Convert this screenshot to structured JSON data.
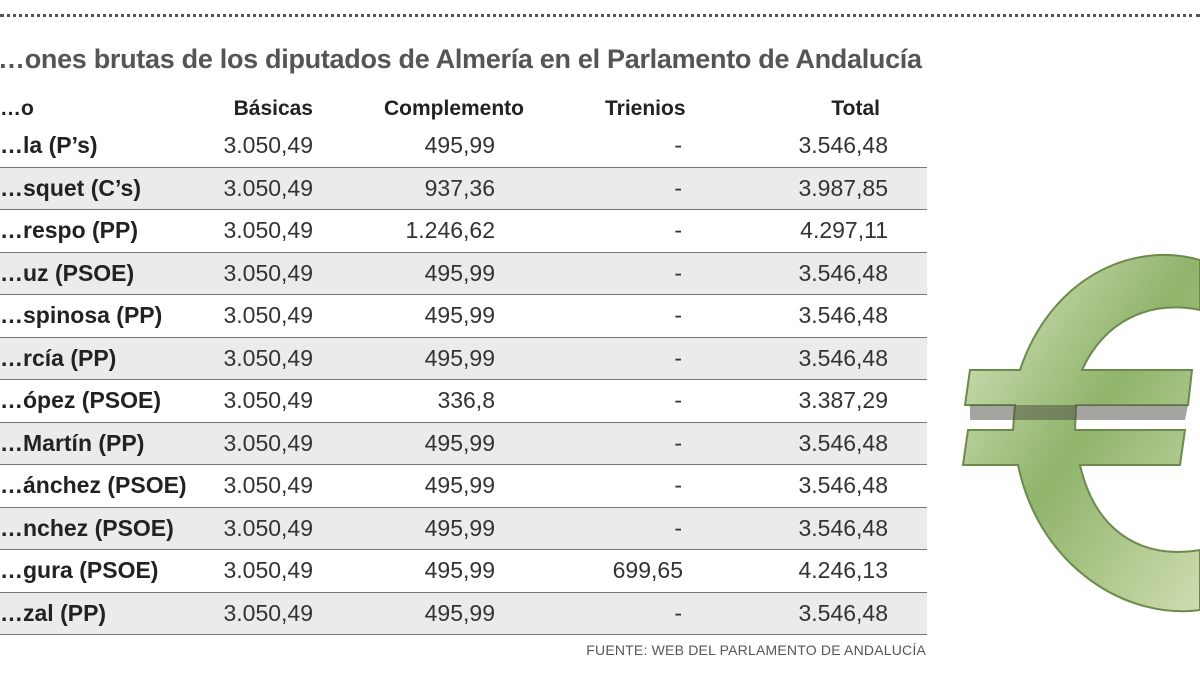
{
  "title": "…ones brutas de los diputados de Almería en el Parlamento de Andalucía",
  "columns": [
    "…o",
    "Básicas",
    "Complemento",
    "Trienios",
    "Total"
  ],
  "rows": [
    {
      "name": "…la (P’s)",
      "basicas": "3.050,49",
      "complemento": "495,99",
      "trienios": "-",
      "total": "3.546,48"
    },
    {
      "name": "…squet (C’s)",
      "basicas": "3.050,49",
      "complemento": "937,36",
      "trienios": "-",
      "total": "3.987,85"
    },
    {
      "name": "…respo (PP)",
      "basicas": "3.050,49",
      "complemento": "1.246,62",
      "trienios": "-",
      "total": "4.297,11"
    },
    {
      "name": "…uz (PSOE)",
      "basicas": "3.050,49",
      "complemento": "495,99",
      "trienios": "-",
      "total": "3.546,48"
    },
    {
      "name": "…spinosa (PP)",
      "basicas": "3.050,49",
      "complemento": "495,99",
      "trienios": "-",
      "total": "3.546,48"
    },
    {
      "name": "…rcía (PP)",
      "basicas": "3.050,49",
      "complemento": "495,99",
      "trienios": "-",
      "total": "3.546,48"
    },
    {
      "name": "…ópez (PSOE)",
      "basicas": "3.050,49",
      "complemento": "336,8",
      "trienios": "-",
      "total": "3.387,29"
    },
    {
      "name": "…Martín (PP)",
      "basicas": "3.050,49",
      "complemento": "495,99",
      "trienios": "-",
      "total": "3.546,48"
    },
    {
      "name": "…ánchez (PSOE)",
      "basicas": "3.050,49",
      "complemento": "495,99",
      "trienios": "-",
      "total": "3.546,48"
    },
    {
      "name": "…nchez (PSOE)",
      "basicas": "3.050,49",
      "complemento": "495,99",
      "trienios": "-",
      "total": "3.546,48"
    },
    {
      "name": "…gura (PSOE)",
      "basicas": "3.050,49",
      "complemento": "495,99",
      "trienios": "699,65",
      "total": "4.246,13"
    },
    {
      "name": "…zal (PP)",
      "basicas": "3.050,49",
      "complemento": "495,99",
      "trienios": "-",
      "total": "3.546,48"
    }
  ],
  "source": "FUENTE: WEB DEL PARLAMENTO DE ANDALUCÍA",
  "image": {
    "icon": "euro-banknote-sculpture",
    "colors": {
      "green": "#8fb46a",
      "light": "#dfe8c8"
    }
  }
}
